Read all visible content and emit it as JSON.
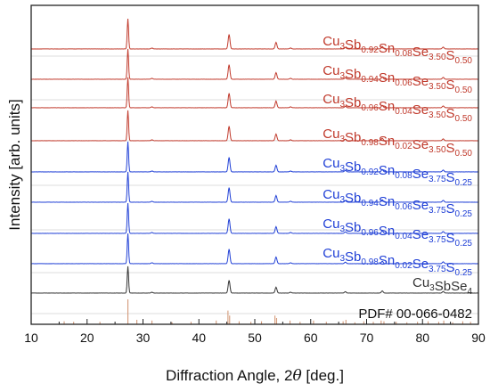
{
  "chart_data": {
    "type": "line",
    "xlabel_text": "Diffraction Angle, 2",
    "xlabel_theta": "θ",
    "xlabel_unit": " [deg.]",
    "ylabel": "Intensity [arb. units]",
    "xlim": [
      10,
      90
    ],
    "x_ticks": [
      "10",
      "20",
      "30",
      "40",
      "50",
      "60",
      "70",
      "80",
      "90"
    ],
    "colors": {
      "red": "#c0392b",
      "blue": "#1f3fd6",
      "black": "#333333",
      "ref": "#d49a7a",
      "axis": "#222222",
      "ruler": "#bbbbbb"
    },
    "series": [
      {
        "name": "Cu3Sb0.92Sn0.08Se3.50S0.50",
        "color": "#c0392b",
        "parts": [
          [
            "Cu",
            ""
          ],
          [
            "3",
            "sub"
          ],
          [
            "Sb",
            ""
          ],
          [
            "0.92",
            "sub"
          ],
          [
            "Sn",
            ""
          ],
          [
            "0.08",
            "sub"
          ],
          [
            "Se",
            ""
          ],
          [
            "3.50",
            "sub"
          ],
          [
            "S",
            ""
          ],
          [
            "0.50",
            "sub"
          ]
        ]
      },
      {
        "name": "Cu3Sb0.94Sn0.06Se3.50S0.50",
        "color": "#c0392b",
        "parts": [
          [
            "Cu",
            ""
          ],
          [
            "3",
            "sub"
          ],
          [
            "Sb",
            ""
          ],
          [
            "0.94",
            "sub"
          ],
          [
            "Sn",
            ""
          ],
          [
            "0.06",
            "sub"
          ],
          [
            "Se",
            ""
          ],
          [
            "3.50",
            "sub"
          ],
          [
            "S",
            ""
          ],
          [
            "0.50",
            "sub"
          ]
        ]
      },
      {
        "name": "Cu3Sb0.96Sn0.04Se3.50S0.50",
        "color": "#c0392b",
        "parts": [
          [
            "Cu",
            ""
          ],
          [
            "3",
            "sub"
          ],
          [
            "Sb",
            ""
          ],
          [
            "0.96",
            "sub"
          ],
          [
            "Sn",
            ""
          ],
          [
            "0.04",
            "sub"
          ],
          [
            "Se",
            ""
          ],
          [
            "3.50",
            "sub"
          ],
          [
            "S",
            ""
          ],
          [
            "0.50",
            "sub"
          ]
        ]
      },
      {
        "name": "Cu3Sb0.98Sn0.02Se3.50S0.50",
        "color": "#c0392b",
        "parts": [
          [
            "Cu",
            ""
          ],
          [
            "3",
            "sub"
          ],
          [
            "Sb",
            ""
          ],
          [
            "0.98",
            "sub"
          ],
          [
            "Sn",
            ""
          ],
          [
            "0.02",
            "sub"
          ],
          [
            "Se",
            ""
          ],
          [
            "3.50",
            "sub"
          ],
          [
            "S",
            ""
          ],
          [
            "0.50",
            "sub"
          ]
        ]
      },
      {
        "name": "Cu3Sb0.92Sn0.08Se3.75S0.25",
        "color": "#1f3fd6",
        "parts": [
          [
            "Cu",
            ""
          ],
          [
            "3",
            "sub"
          ],
          [
            "Sb",
            ""
          ],
          [
            "0.92",
            "sub"
          ],
          [
            "Sn",
            ""
          ],
          [
            "0.08",
            "sub"
          ],
          [
            "Se",
            ""
          ],
          [
            "3.75",
            "sub"
          ],
          [
            "S",
            ""
          ],
          [
            "0.25",
            "sub"
          ]
        ]
      },
      {
        "name": "Cu3Sb0.94Sn0.06Se3.75S0.25",
        "color": "#1f3fd6",
        "parts": [
          [
            "Cu",
            ""
          ],
          [
            "3",
            "sub"
          ],
          [
            "Sb",
            ""
          ],
          [
            "0.94",
            "sub"
          ],
          [
            "Sn",
            ""
          ],
          [
            "0.06",
            "sub"
          ],
          [
            "Se",
            ""
          ],
          [
            "3.75",
            "sub"
          ],
          [
            "S",
            ""
          ],
          [
            "0.25",
            "sub"
          ]
        ]
      },
      {
        "name": "Cu3Sb0.96Sn0.04Se3.75S0.25",
        "color": "#1f3fd6",
        "parts": [
          [
            "Cu",
            ""
          ],
          [
            "3",
            "sub"
          ],
          [
            "Sb",
            ""
          ],
          [
            "0.96",
            "sub"
          ],
          [
            "Sn",
            ""
          ],
          [
            "0.04",
            "sub"
          ],
          [
            "Se",
            ""
          ],
          [
            "3.75",
            "sub"
          ],
          [
            "S",
            ""
          ],
          [
            "0.25",
            "sub"
          ]
        ]
      },
      {
        "name": "Cu3Sb0.98Sn0.02Se3.75S0.25",
        "color": "#1f3fd6",
        "parts": [
          [
            "Cu",
            ""
          ],
          [
            "3",
            "sub"
          ],
          [
            "Sb",
            ""
          ],
          [
            "0.98",
            "sub"
          ],
          [
            "Sn",
            ""
          ],
          [
            "0.02",
            "sub"
          ],
          [
            "Se",
            ""
          ],
          [
            "3.75",
            "sub"
          ],
          [
            "S",
            ""
          ],
          [
            "0.25",
            "sub"
          ]
        ]
      },
      {
        "name": "Cu3SbSe4",
        "color": "#333333",
        "parts": [
          [
            "Cu",
            ""
          ],
          [
            "3",
            "sub"
          ],
          [
            "SbSe",
            ""
          ],
          [
            "4",
            "sub"
          ]
        ]
      }
    ],
    "peaks": [
      {
        "x": 27.3,
        "h": 1.0
      },
      {
        "x": 31.6,
        "h": 0.03
      },
      {
        "x": 45.4,
        "h": 0.48
      },
      {
        "x": 53.8,
        "h": 0.22
      },
      {
        "x": 56.4,
        "h": 0.03
      },
      {
        "x": 66.2,
        "h": 0.05
      },
      {
        "x": 72.8,
        "h": 0.08
      },
      {
        "x": 83.7,
        "h": 0.06
      }
    ],
    "reference": {
      "label": "PDF# 00-066-0482",
      "lines": [
        {
          "x": 15.9,
          "h": 0.12
        },
        {
          "x": 17.6,
          "h": 0.1
        },
        {
          "x": 22.3,
          "h": 0.1
        },
        {
          "x": 27.3,
          "h": 1.0
        },
        {
          "x": 28.9,
          "h": 0.18
        },
        {
          "x": 31.6,
          "h": 0.15
        },
        {
          "x": 35.2,
          "h": 0.08
        },
        {
          "x": 38.6,
          "h": 0.1
        },
        {
          "x": 43.1,
          "h": 0.15
        },
        {
          "x": 45.2,
          "h": 0.55
        },
        {
          "x": 45.5,
          "h": 0.35
        },
        {
          "x": 47.2,
          "h": 0.12
        },
        {
          "x": 49.3,
          "h": 0.1
        },
        {
          "x": 51.2,
          "h": 0.12
        },
        {
          "x": 53.6,
          "h": 0.35
        },
        {
          "x": 53.9,
          "h": 0.25
        },
        {
          "x": 56.3,
          "h": 0.15
        },
        {
          "x": 58.1,
          "h": 0.1
        },
        {
          "x": 60.5,
          "h": 0.15
        },
        {
          "x": 62.8,
          "h": 0.1
        },
        {
          "x": 65.8,
          "h": 0.12
        },
        {
          "x": 66.3,
          "h": 0.18
        },
        {
          "x": 67.9,
          "h": 0.08
        },
        {
          "x": 69.5,
          "h": 0.12
        },
        {
          "x": 71.2,
          "h": 0.1
        },
        {
          "x": 72.6,
          "h": 0.15
        },
        {
          "x": 73.1,
          "h": 0.12
        },
        {
          "x": 75.3,
          "h": 0.1
        },
        {
          "x": 77.2,
          "h": 0.08
        },
        {
          "x": 79.1,
          "h": 0.1
        },
        {
          "x": 81.0,
          "h": 0.12
        },
        {
          "x": 82.9,
          "h": 0.1
        },
        {
          "x": 83.8,
          "h": 0.15
        },
        {
          "x": 85.4,
          "h": 0.08
        },
        {
          "x": 87.2,
          "h": 0.12
        },
        {
          "x": 88.6,
          "h": 0.1
        }
      ]
    },
    "grid": false,
    "legend": "inline labels at right of each trace"
  }
}
